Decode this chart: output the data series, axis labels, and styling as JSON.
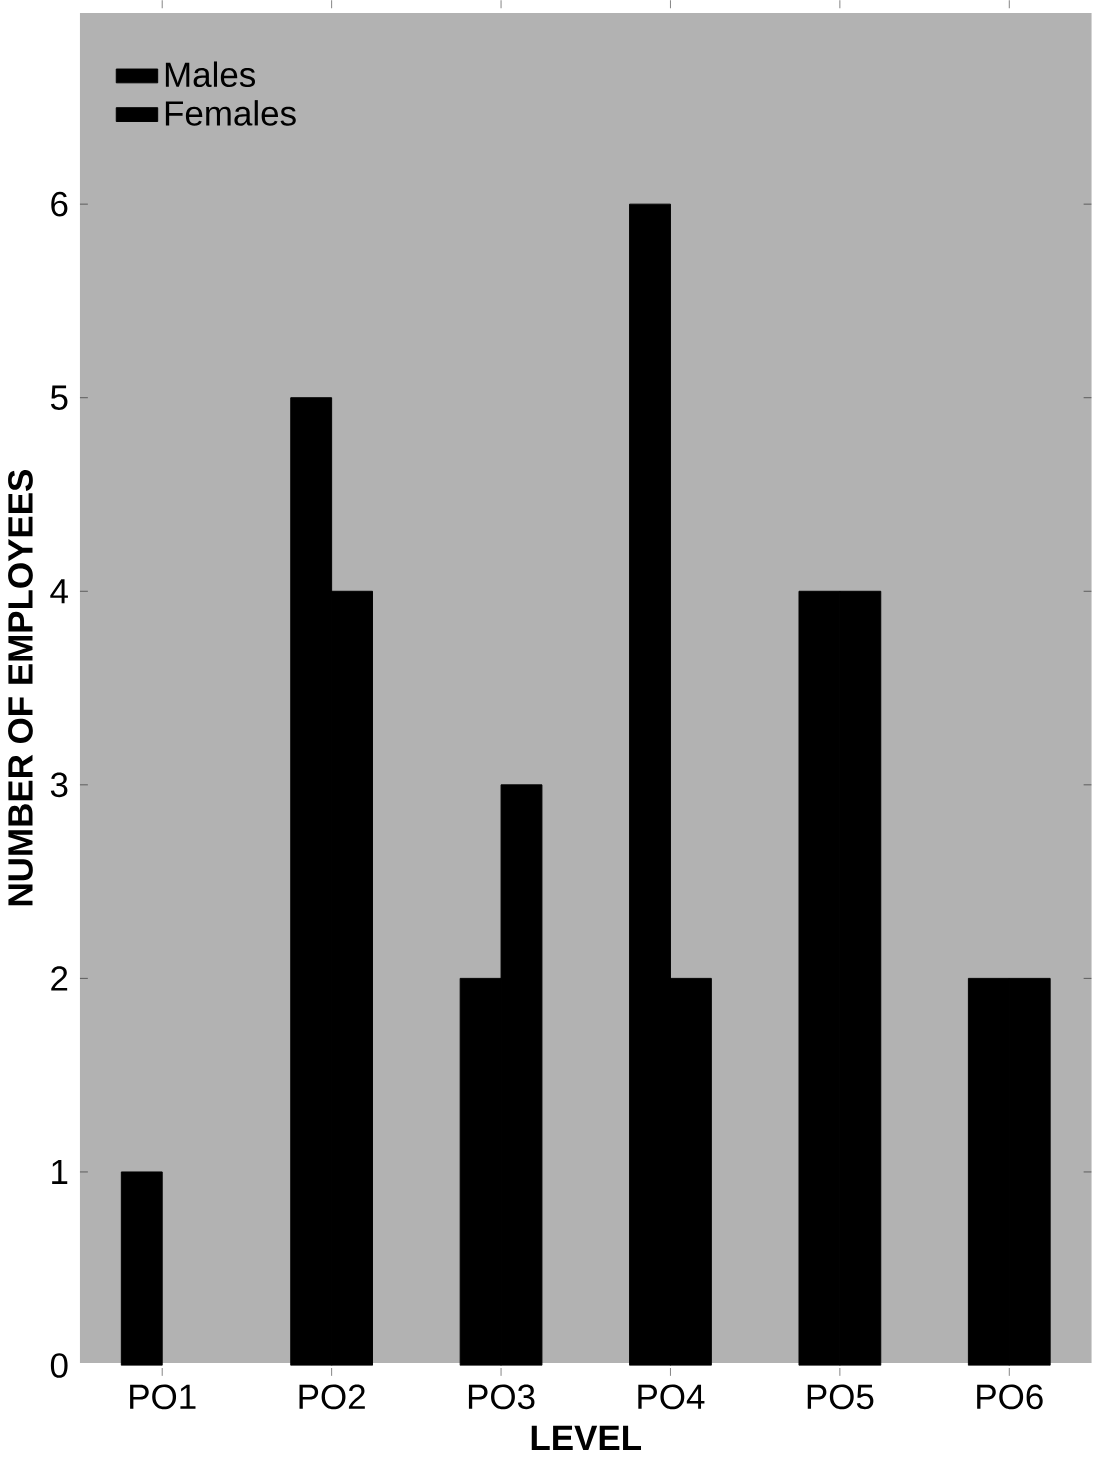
{
  "chart_data": {
    "type": "bar",
    "xlabel": "LEVEL",
    "ylabel": "NUMBER OF EMPLOYEES",
    "categories": [
      "PO1",
      "PO2",
      "PO3",
      "PO4",
      "PO5",
      "PO6"
    ],
    "series": [
      {
        "name": "Males",
        "color": "#000000",
        "values": [
          1,
          5,
          2,
          6,
          4,
          2
        ]
      },
      {
        "name": "Females",
        "color": "#000000",
        "values": [
          null,
          4,
          3,
          2,
          4,
          2
        ]
      }
    ],
    "ylim": [
      0,
      7
    ],
    "yticks": [
      0,
      1,
      2,
      3,
      4,
      5,
      6
    ],
    "legend": "top left"
  }
}
